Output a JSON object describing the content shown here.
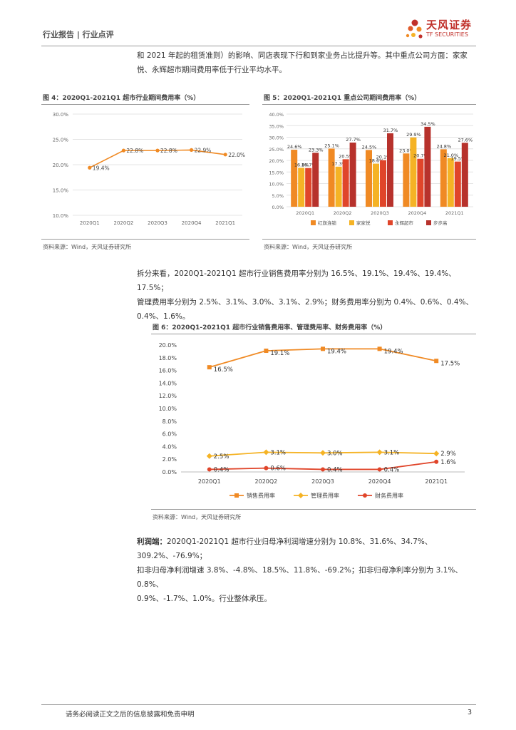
{
  "header": {
    "label": "行业报告 | 行业点评"
  },
  "logo": {
    "cn": "天风证券",
    "en": "TF SECURITIES"
  },
  "intro": {
    "line1": "和 2021 年起的租赁准则）的影响、同店表现下行和到家业务占比提升等。其中重点公司方面：家家",
    "line2": "悦、永辉超市期间费用率低于行业平均水平。"
  },
  "fig4": {
    "title": "图 4：2020Q1-2021Q1 超市行业期间费用率（%）",
    "source": "资料来源：Wind，天风证券研究所"
  },
  "fig5": {
    "title": "图 5：2020Q1-2021Q1 重点公司期间费用率（%）",
    "source": "资料来源：Wind，天风证券研究所"
  },
  "para2": {
    "line1": "拆分来看，2020Q1-2021Q1 超市行业销售费用率分别为 16.5%、19.1%、19.4%、19.4%、17.5%；",
    "line2": "管理费用率分别为 2.5%、3.1%、3.0%、3.1%、2.9%；财务费用率分别为 0.4%、0.6%、0.4%、",
    "line3": "0.4%、1.6%。"
  },
  "fig6": {
    "title": "图 6：2020Q1-2021Q1 超市行业销售费用率、管理费用率、财务费用率（%）",
    "source": "资料来源：Wind，天风证券研究所"
  },
  "para3": {
    "bold": "利润端：",
    "line1": "2020Q1-2021Q1 超市行业归母净利润增速分别为 10.8%、31.6%、34.7%、309.2%、-76.9%；",
    "line2": "扣非归母净利润增速 3.8%、-4.8%、18.5%、11.8%、-69.2%；扣非归母净利率分别为 3.1%、0.8%、",
    "line3": "0.9%、-1.7%、1.0%。行业整体承压。"
  },
  "footer": {
    "text": "请务必阅读正文之后的信息披露和免责申明",
    "page": "3"
  },
  "colors": {
    "orange": "#f08a24",
    "yellow": "#f5b325",
    "red": "#e0452a",
    "darkred": "#b7322c"
  },
  "chart_data": [
    {
      "id": "fig4",
      "type": "line",
      "categories": [
        "2020Q1",
        "2020Q2",
        "2020Q3",
        "2020Q4",
        "2021Q1"
      ],
      "values": [
        19.4,
        22.8,
        22.8,
        22.9,
        22.0
      ],
      "labels": [
        "19.4%",
        "22.8%",
        "22.8%",
        "22.9%",
        "22.0%"
      ],
      "ylim": [
        10,
        30
      ],
      "yticks": [
        "10.0%",
        "15.0%",
        "20.0%",
        "25.0%",
        "30.0%"
      ]
    },
    {
      "id": "fig5",
      "type": "bar",
      "categories": [
        "2020Q1",
        "2020Q2",
        "2020Q3",
        "2020Q4",
        "2021Q1"
      ],
      "series": [
        {
          "name": "红旗连锁",
          "values": [
            24.6,
            25.1,
            24.5,
            23.0,
            24.8
          ]
        },
        {
          "name": "家家悦",
          "values": [
            16.8,
            17.3,
            18.6,
            29.9,
            21.0
          ]
        },
        {
          "name": "永辉超市",
          "values": [
            16.7,
            20.5,
            20.1,
            20.7,
            19.5
          ]
        },
        {
          "name": "步步高",
          "values": [
            23.3,
            27.7,
            31.7,
            34.5,
            27.6
          ]
        }
      ],
      "labels": [
        [
          "24.6%",
          "25.1%",
          "24.5%",
          "23.0%",
          "24.8%"
        ],
        [
          "16.8%",
          "17.3%",
          "18.6%",
          "29.9%",
          "21.0%"
        ],
        [
          "16.7%",
          "20.5%",
          "20.1%",
          "20.7%",
          "19.5%"
        ],
        [
          "23.3%",
          "27.7%",
          "31.7%",
          "34.5%",
          "27.6%"
        ]
      ],
      "ylim": [
        0,
        40
      ],
      "yticks": [
        "0.0%",
        "5.0%",
        "10.0%",
        "15.0%",
        "20.0%",
        "25.0%",
        "30.0%",
        "35.0%",
        "40.0%"
      ]
    },
    {
      "id": "fig6",
      "type": "line",
      "categories": [
        "2020Q1",
        "2020Q2",
        "2020Q3",
        "2020Q4",
        "2021Q1"
      ],
      "series": [
        {
          "name": "销售费用率",
          "values": [
            16.5,
            19.1,
            19.4,
            19.4,
            17.5
          ],
          "labels": [
            "16.5%",
            "19.1%",
            "19.4%",
            "19.4%",
            "17.5%"
          ]
        },
        {
          "name": "管理费用率",
          "values": [
            2.5,
            3.1,
            3.0,
            3.1,
            2.9
          ],
          "labels": [
            "2.5%",
            "3.1%",
            "3.0%",
            "3.1%",
            "2.9%"
          ]
        },
        {
          "name": "财务费用率",
          "values": [
            0.4,
            0.6,
            0.4,
            0.4,
            1.6
          ],
          "labels": [
            "0.4%",
            "0.6%",
            "0.4%",
            "0.4%",
            "1.6%"
          ]
        }
      ],
      "ylim": [
        0,
        20
      ],
      "yticks": [
        "0.0%",
        "2.0%",
        "4.0%",
        "6.0%",
        "8.0%",
        "10.0%",
        "12.0%",
        "14.0%",
        "16.0%",
        "18.0%",
        "20.0%"
      ]
    }
  ]
}
